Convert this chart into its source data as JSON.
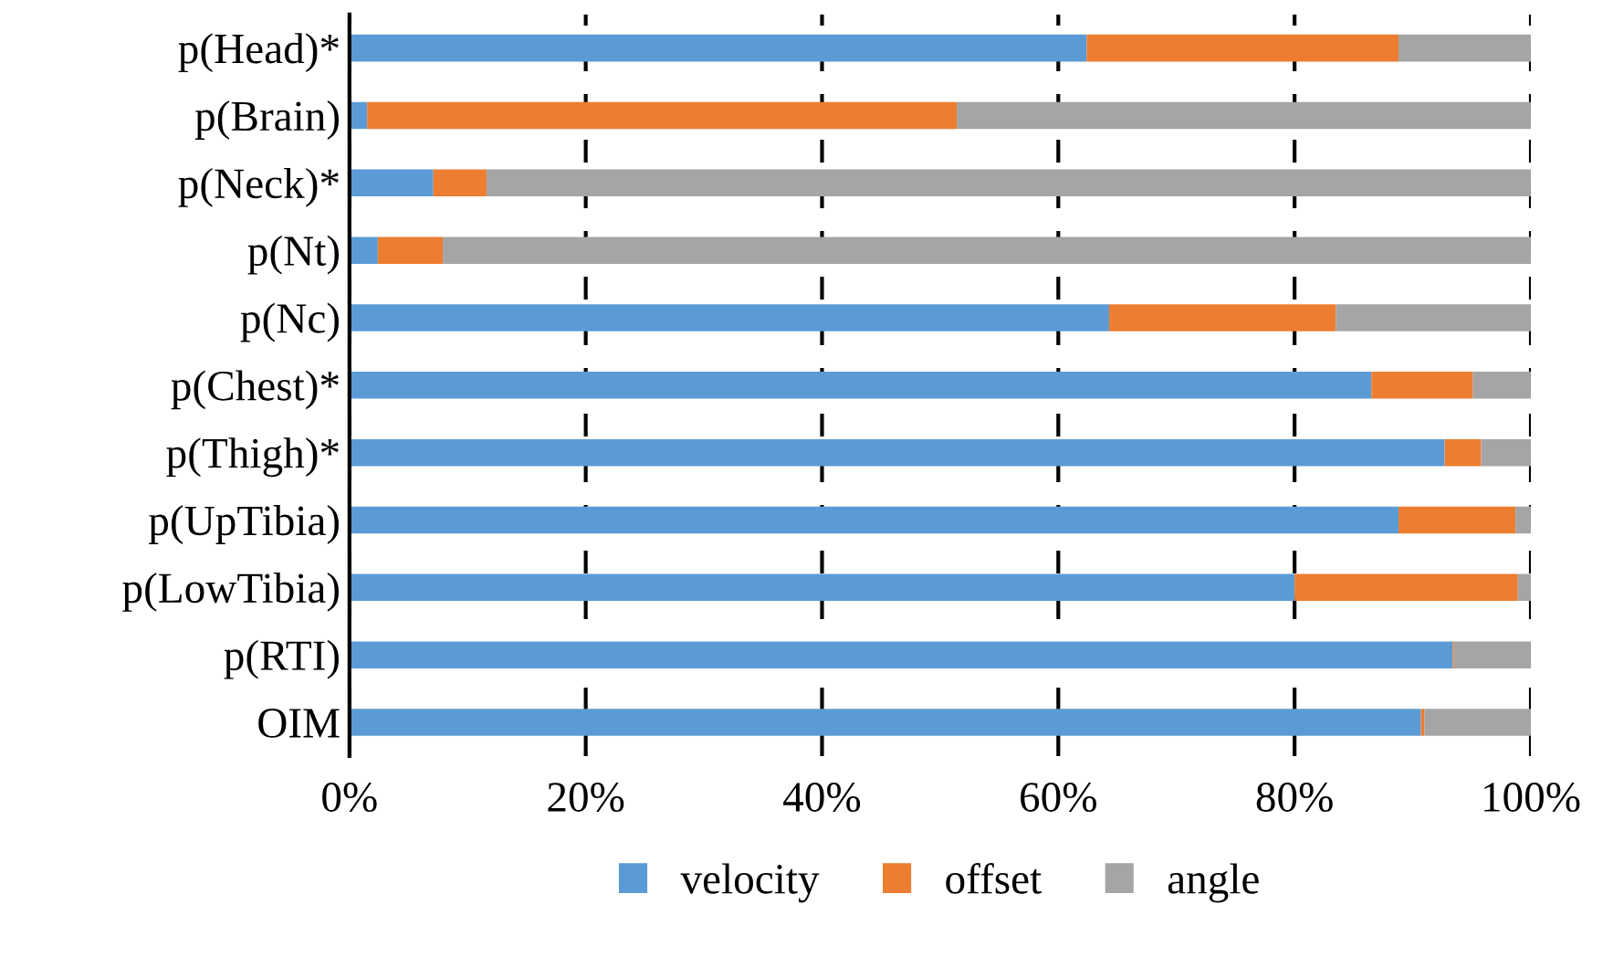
{
  "chart_data": {
    "type": "bar",
    "orientation": "horizontal",
    "stacked": true,
    "categories": [
      "p(Head)*",
      "p(Brain)",
      "p(Neck)*",
      "p(Nt)",
      "p(Nc)",
      "p(Chest)*",
      "p(Thigh)*",
      "p(UpTibia)",
      "p(LowTibia)",
      "p(RTI)",
      "OIM"
    ],
    "series": [
      {
        "name": "velocity",
        "color": "#5b9bd5",
        "values": [
          62.4,
          1.5,
          7.1,
          2.4,
          64.3,
          86.5,
          92.7,
          88.8,
          80.0,
          93.4,
          90.7
        ]
      },
      {
        "name": "offset",
        "color": "#ed7d31",
        "values": [
          26.4,
          49.9,
          4.5,
          5.5,
          19.2,
          8.6,
          3.1,
          9.9,
          18.9,
          0.1,
          0.3
        ]
      },
      {
        "name": "angle",
        "color": "#a5a5a5",
        "values": [
          11.2,
          48.6,
          88.4,
          92.1,
          16.5,
          4.9,
          4.2,
          1.3,
          1.1,
          6.5,
          9.0
        ]
      }
    ],
    "xlim": [
      0,
      100
    ],
    "xticks": [
      {
        "value": 0,
        "label": "0%"
      },
      {
        "value": 20,
        "label": "20%"
      },
      {
        "value": 40,
        "label": "40%"
      },
      {
        "value": 60,
        "label": "60%"
      },
      {
        "value": 80,
        "label": "80%"
      },
      {
        "value": 100,
        "label": "100%"
      }
    ],
    "grid": "x",
    "line_style": "dashed",
    "legend": "bottom"
  }
}
